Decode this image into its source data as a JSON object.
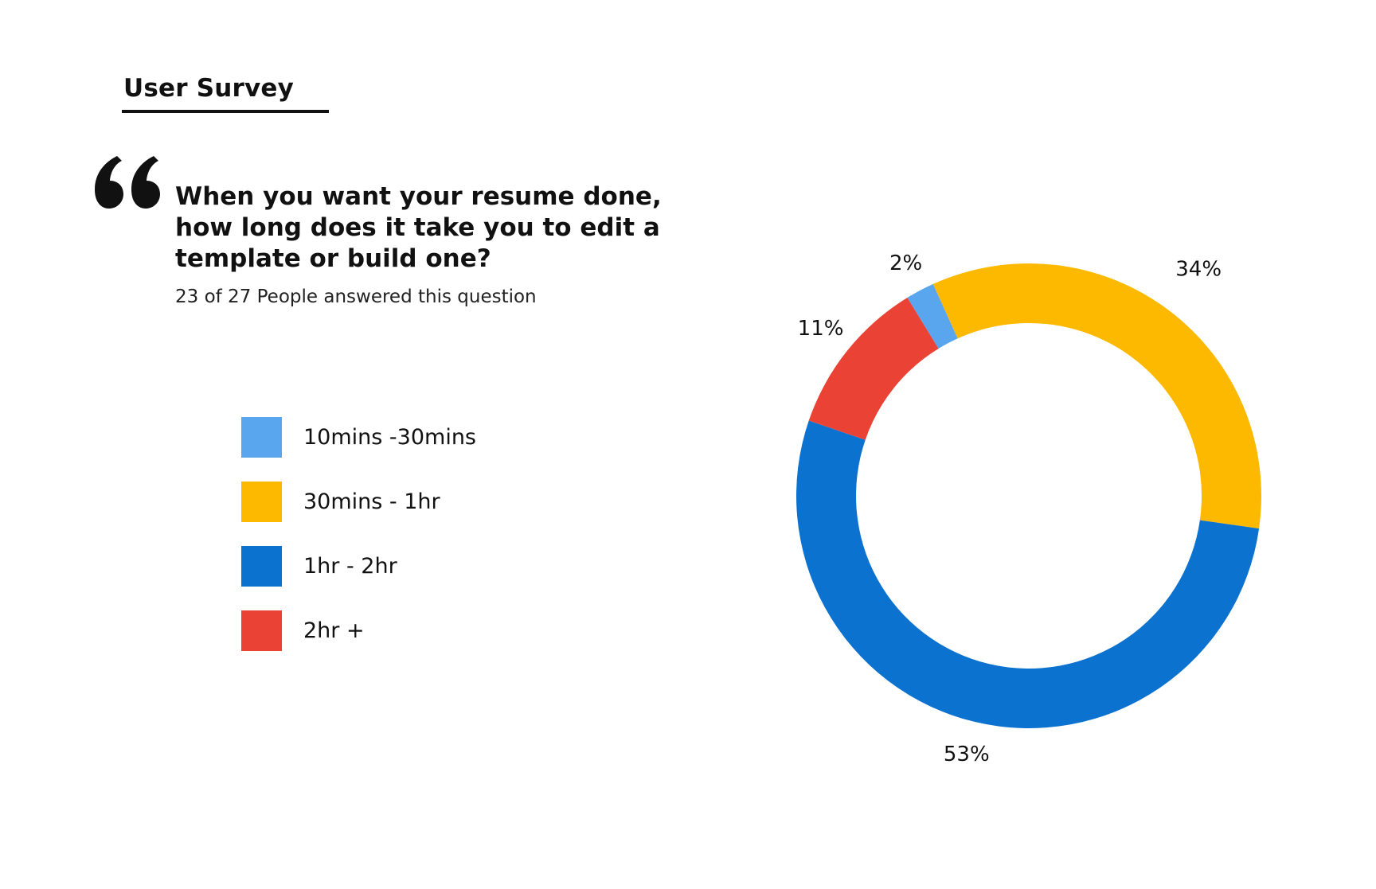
{
  "header": {
    "title": "User Survey"
  },
  "question": {
    "text": "When you want your resume done, how long does it take you to edit a template or build one?",
    "answered": "23 of 27 People answered this question"
  },
  "icons": {
    "quote": "quote-icon"
  },
  "chart_data": {
    "type": "pie",
    "variant": "donut",
    "categories": [
      "10mins -30mins",
      "30mins - 1hr",
      "1hr - 2hr",
      "2hr +"
    ],
    "values": [
      2,
      34,
      53,
      11
    ],
    "value_labels": [
      "2%",
      "34%",
      "53%",
      "11%"
    ],
    "colors": [
      "#5AA6EE",
      "#FDB900",
      "#0C72CF",
      "#EA4335"
    ],
    "legend_position": "left",
    "title": "",
    "xlabel": "",
    "ylabel": ""
  }
}
